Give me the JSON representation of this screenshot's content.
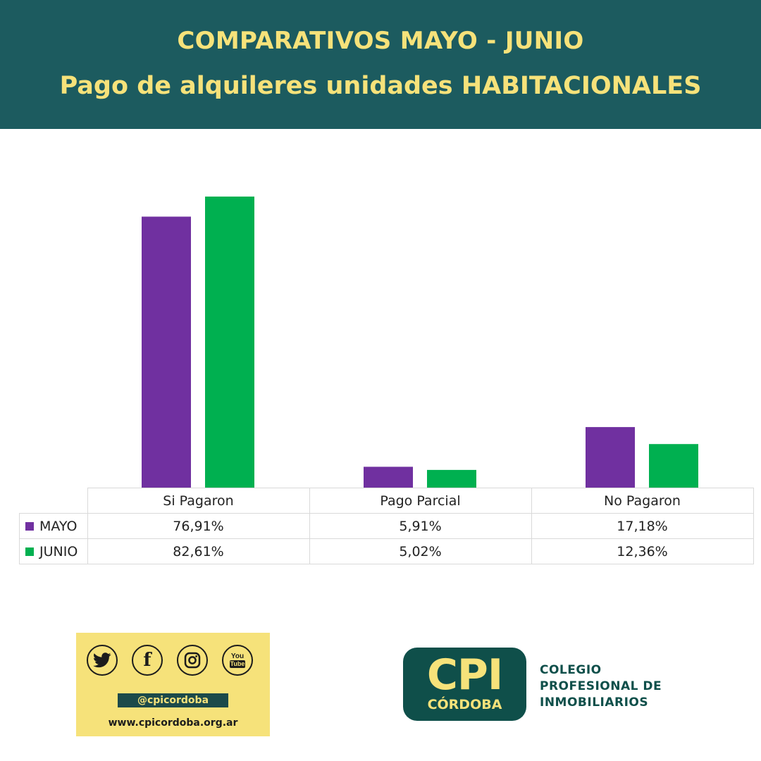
{
  "header": {
    "title": "COMPARATIVOS  MAYO - JUNIO",
    "subtitle": "Pago de alquileres unidades HABITACIONALES"
  },
  "colors": {
    "header_bg": "#1c5b5f",
    "header_text": "#f6e27a",
    "mayo": "#7030a0",
    "junio": "#00b050"
  },
  "chart_data": {
    "type": "bar",
    "categories": [
      "Si Pagaron",
      "Pago Parcial",
      "No Pagaron"
    ],
    "series": [
      {
        "name": "MAYO",
        "values": [
          76.91,
          5.91,
          17.18
        ],
        "labels": [
          "76,91%",
          "5,91%",
          "17,18%"
        ],
        "color": "#7030a0"
      },
      {
        "name": "JUNIO",
        "values": [
          82.61,
          5.02,
          12.36
        ],
        "labels": [
          "82,61%",
          "5,02%",
          "12,36%"
        ],
        "color": "#00b050"
      }
    ],
    "ylim": [
      0,
      100
    ],
    "grid": false,
    "legend": "data-table"
  },
  "social": {
    "icons": [
      "twitter-icon",
      "facebook-icon",
      "instagram-icon",
      "youtube-icon"
    ],
    "facebook_glyph": "f",
    "youtube_glyph_top": "You",
    "youtube_glyph_bottom": "Tube",
    "handle": "@cpicordoba",
    "website": "www.cpicordoba.org.ar"
  },
  "logo": {
    "mark": "CPI",
    "city": "CÓRDOBA",
    "org_lines": [
      "COLEGIO",
      "PROFESIONAL DE",
      "INMOBILIARIOS"
    ]
  }
}
